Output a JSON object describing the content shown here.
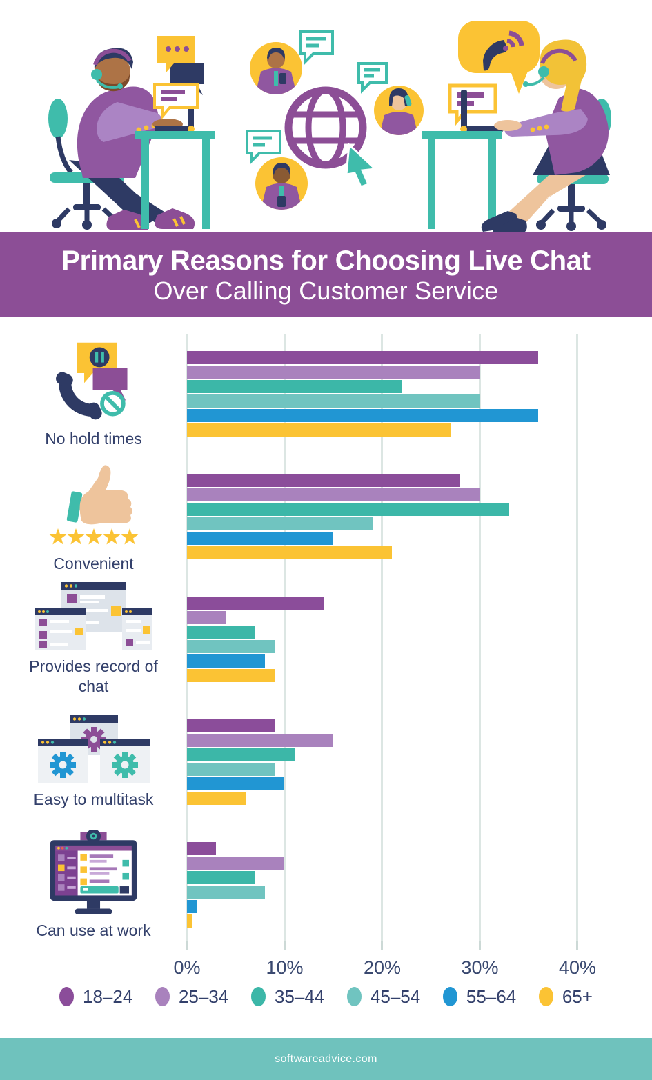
{
  "banner": {
    "title_line1": "Primary Reasons for Choosing Live Chat",
    "title_line2": "Over Calling Customer Service",
    "bg_color": "#8c4e96"
  },
  "footer": {
    "url": "softwareadvice.com",
    "bg_color": "#6fc2bd"
  },
  "colors": {
    "text_navy": "#33406b",
    "gridline": "#dce6e3",
    "desk_teal": "#3fbcab",
    "accent_yellow": "#fbc334"
  },
  "chart_data": {
    "type": "bar",
    "orientation": "horizontal",
    "title": "Primary Reasons for Choosing Live Chat Over Calling Customer Service",
    "categories": [
      "No hold times",
      "Convenient",
      "Provides record of chat",
      "Easy to multitask",
      "Can use at work"
    ],
    "series": [
      {
        "name": "18–24",
        "color": "#8b4d9a",
        "values": [
          36,
          28,
          14,
          9,
          3
        ]
      },
      {
        "name": "25–34",
        "color": "#a982bd",
        "values": [
          30,
          30,
          4,
          15,
          10
        ]
      },
      {
        "name": "35–44",
        "color": "#3cb7a8",
        "values": [
          22,
          33,
          7,
          11,
          7
        ]
      },
      {
        "name": "45–54",
        "color": "#70c4c0",
        "values": [
          30,
          19,
          9,
          9,
          8
        ]
      },
      {
        "name": "55–64",
        "color": "#2196d3",
        "values": [
          36,
          15,
          8,
          10,
          1
        ]
      },
      {
        "name": "65+",
        "color": "#fbc334",
        "values": [
          27,
          21,
          9,
          6,
          0.5
        ]
      }
    ],
    "x_ticks": [
      {
        "value": 0,
        "label": "0%"
      },
      {
        "value": 10,
        "label": "10%"
      },
      {
        "value": 20,
        "label": "20%"
      },
      {
        "value": 30,
        "label": "30%"
      },
      {
        "value": 40,
        "label": "40%"
      }
    ],
    "x_max": 47,
    "xlabel": "",
    "ylabel": "",
    "grid": true,
    "legend_position": "bottom",
    "units": "percent of respondents"
  }
}
